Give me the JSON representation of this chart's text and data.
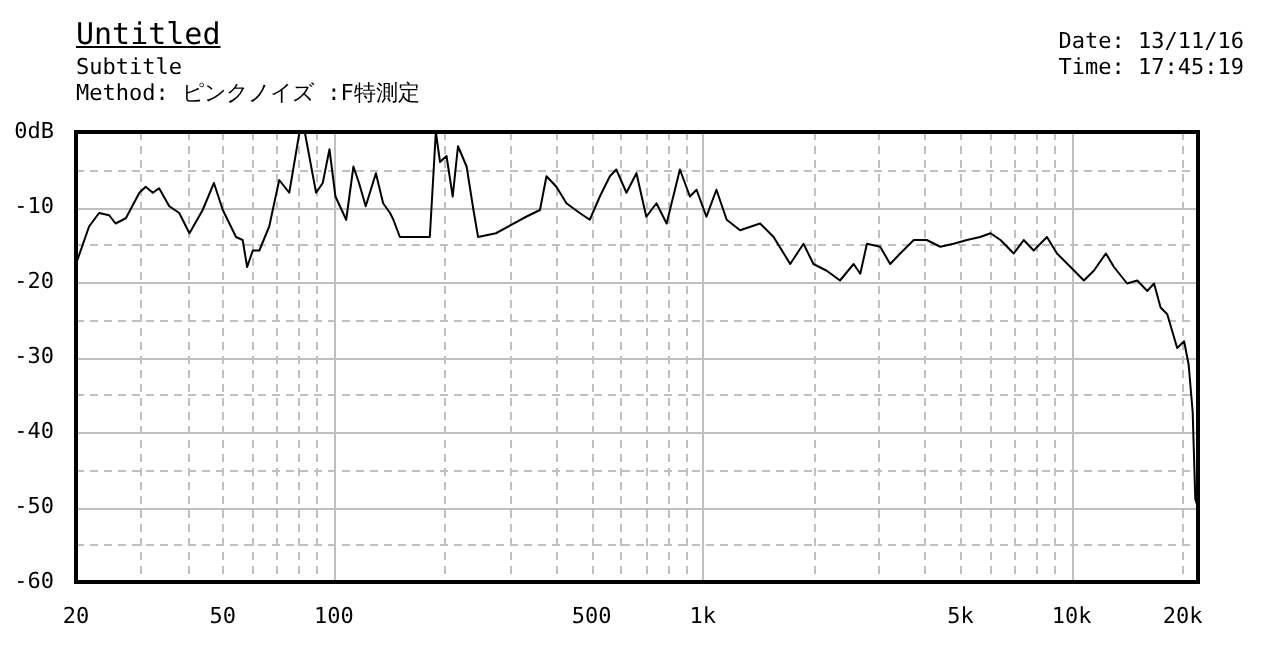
{
  "chart_data": {
    "type": "line",
    "title": "Untitled",
    "subtitle": "Subtitle",
    "annotations": [
      "Method:  ピンクノイズ  :F特測定",
      "Date: 13/11/16",
      "Time: 17:45:19"
    ],
    "x": [
      20,
      21.7,
      23.1,
      24.6,
      25.6,
      27.3,
      29.7,
      30.9,
      32.3,
      33.6,
      35.8,
      38.1,
      40.6,
      44.1,
      47.3,
      50,
      54.3,
      56.6,
      58.2,
      60.3,
      62.8,
      66.8,
      71.1,
      75.7,
      80.7,
      83.4,
      89.5,
      93.3,
      97.3,
      101,
      108,
      113,
      117,
      122,
      130,
      136,
      142,
      145,
      151,
      182,
      189,
      194,
      202,
      210,
      217,
      229,
      239,
      246,
      275,
      332,
      362,
      377,
      401,
      427,
      464,
      494,
      526,
      560,
      583,
      621,
      661,
      703,
      749,
      798,
      867,
      923,
      962,
      1023,
      1089,
      1161,
      1262,
      1430,
      1556,
      1726,
      1875,
      1995,
      2168,
      2355,
      2564,
      2673,
      2786,
      3027,
      3221,
      3428,
      3733,
      4046,
      4406,
      4786,
      5200,
      5649,
      6026,
      6412,
      6966,
      7413,
      7889,
      8570,
      9125,
      9930,
      10790,
      11480,
      12380,
      13020,
      14130,
      15060,
      16030,
      16720,
      17420,
      18160,
      19320,
      20170,
      20750,
      21280,
      21630,
      21900
    ],
    "series": [
      {
        "color": "#000000",
        "values": [
          -17.6,
          -12.6,
          -10.8,
          -11.1,
          -12.2,
          -11.5,
          -8.1,
          -7.3,
          -8.1,
          -7.5,
          -9.9,
          -10.8,
          -13.5,
          -10.4,
          -6.8,
          -10.4,
          -14,
          -14.4,
          -18,
          -15.8,
          -15.8,
          -12.6,
          -6.4,
          -8.1,
          0,
          0,
          -8.1,
          -6.8,
          -2.3,
          -8.6,
          -11.7,
          -4.6,
          -6.8,
          -9.9,
          -5.5,
          -9.5,
          -10.8,
          -11.7,
          -14,
          -14,
          0,
          -4,
          -3.2,
          -8.6,
          -1.9,
          -4.6,
          -10.4,
          -14,
          -13.5,
          -11.3,
          -10.4,
          -5.9,
          -7.3,
          -9.5,
          -10.8,
          -11.7,
          -8.6,
          -5.9,
          -5,
          -8.1,
          -5.5,
          -11.3,
          -9.5,
          -12.2,
          -5,
          -8.6,
          -7.7,
          -11.3,
          -7.7,
          -11.7,
          -13.1,
          -12.2,
          -14,
          -17.6,
          -14.9,
          -17.6,
          -18.5,
          -19.8,
          -17.6,
          -18.9,
          -14.9,
          -15.3,
          -17.6,
          -16.2,
          -14.4,
          -14.4,
          -15.3,
          -14.9,
          -14.4,
          -14,
          -13.5,
          -14.4,
          -16.2,
          -14.4,
          -15.8,
          -14,
          -16.2,
          -18,
          -19.8,
          -18.5,
          -16.2,
          -18,
          -20.2,
          -19.8,
          -21.2,
          -20.2,
          -23.4,
          -24.3,
          -28.8,
          -27.9,
          -31,
          -37.3,
          -48.9,
          -49.8
        ]
      }
    ],
    "log": "x",
    "xlim": [
      20,
      22000
    ],
    "xticks": [
      20,
      {
        "value": 30,
        "label": null
      },
      {
        "value": 40,
        "label": null
      },
      50,
      {
        "value": 60,
        "label": null
      },
      {
        "value": 70,
        "label": null
      },
      {
        "value": 80,
        "label": null
      },
      {
        "value": 90,
        "label": null
      },
      100,
      {
        "value": 200,
        "label": null
      },
      {
        "value": 300,
        "label": null
      },
      {
        "value": 400,
        "label": null
      },
      500,
      {
        "value": 600,
        "label": null
      },
      {
        "value": 700,
        "label": null
      },
      {
        "value": 800,
        "label": null
      },
      {
        "value": 900,
        "label": null
      },
      {
        "value": 1000,
        "label": "1k"
      },
      {
        "value": 2000,
        "label": null
      },
      {
        "value": 3000,
        "label": null
      },
      {
        "value": 4000,
        "label": null
      },
      {
        "value": 5000,
        "label": "5k"
      },
      {
        "value": 6000,
        "label": null
      },
      {
        "value": 7000,
        "label": null
      },
      {
        "value": 8000,
        "label": null
      },
      {
        "value": 9000,
        "label": null
      },
      {
        "value": 10000,
        "label": "10k"
      },
      {
        "value": 20000,
        "label": "20k"
      }
    ],
    "ylim": [
      -60,
      0
    ],
    "yticks": [
      {
        "value": 0,
        "label": "0dB"
      },
      {
        "value": -5,
        "label": null
      },
      -10,
      {
        "value": -15,
        "label": null
      },
      -20,
      {
        "value": -25,
        "label": null
      },
      -30,
      {
        "value": -35,
        "label": null
      },
      -40,
      {
        "value": -45,
        "label": null
      },
      -50,
      {
        "value": -55,
        "label": null
      },
      -60
    ],
    "grid": true,
    "legend": false,
    "marker": "none",
    "line_style": "solid"
  }
}
